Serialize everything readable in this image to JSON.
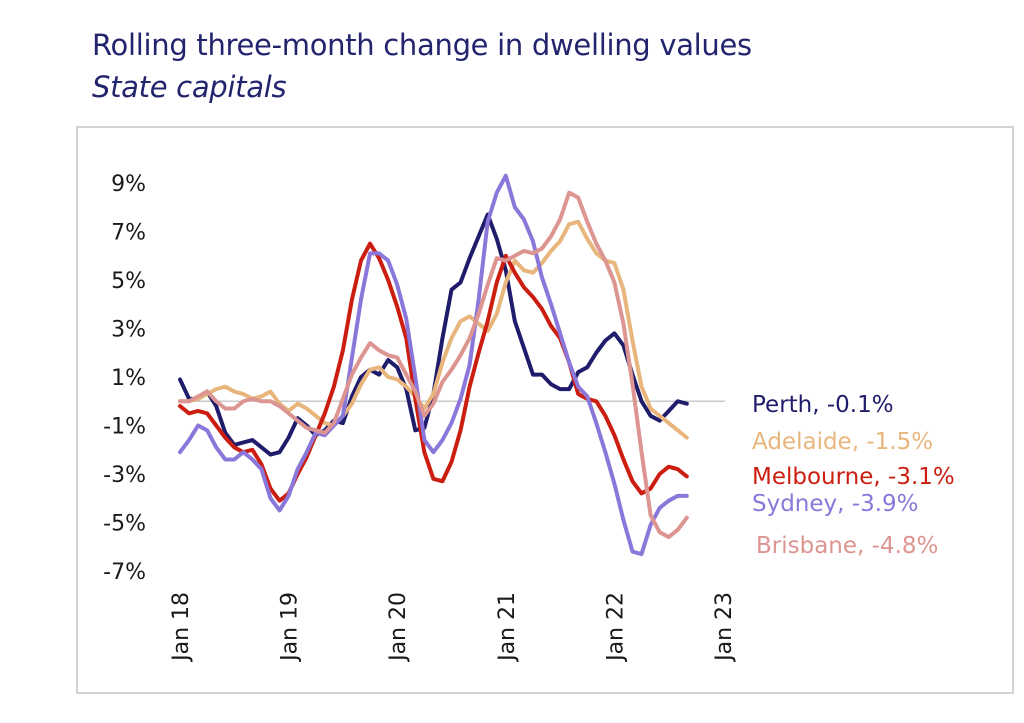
{
  "title": "Rolling three-month change in dwelling values",
  "subtitle": "State capitals",
  "chart_data": {
    "type": "line",
    "title": "Rolling three-month change in dwelling values",
    "subtitle": "State capitals",
    "xlabel": "",
    "ylabel": "",
    "ylim": [
      -7,
      9
    ],
    "y_ticks": [
      "9%",
      "7%",
      "5%",
      "3%",
      "1%",
      "-1%",
      "-3%",
      "-5%",
      "-7%"
    ],
    "y_tick_values": [
      9,
      7,
      5,
      3,
      1,
      -1,
      -3,
      -5,
      -7
    ],
    "x_ticks": [
      "Jan 18",
      "Jan 19",
      "Jan 20",
      "Jan 21",
      "Jan 22",
      "Jan 23"
    ],
    "x_tick_months": [
      0,
      12,
      24,
      36,
      48,
      60
    ],
    "grid": false,
    "zero_line": true,
    "legend": "end-of-line labels",
    "series": [
      {
        "name": "Perth",
        "end_label": "Perth, -0.1%",
        "color": "#1f1d6b",
        "values": [
          0.9,
          0.1,
          0.1,
          0.4,
          -0.2,
          -1.3,
          -1.8,
          -1.7,
          -1.6,
          -1.9,
          -2.2,
          -2.1,
          -1.5,
          -0.7,
          -1.0,
          -1.4,
          -1.2,
          -0.8,
          -0.9,
          0.2,
          1.0,
          1.3,
          1.1,
          1.7,
          1.4,
          0.5,
          -1.2,
          -1.1,
          0.3,
          2.6,
          4.6,
          4.9,
          5.9,
          6.8,
          7.7,
          6.7,
          5.4,
          3.3,
          2.2,
          1.1,
          1.1,
          0.7,
          0.5,
          0.5,
          1.2,
          1.4,
          2.0,
          2.5,
          2.8,
          2.3,
          1.1,
          0.0,
          -0.6,
          -0.8,
          -0.4,
          0.0,
          -0.1
        ]
      },
      {
        "name": "Adelaide",
        "end_label": "Adelaide, -1.5%",
        "color": "#e8b67d",
        "values": [
          0.0,
          0.0,
          0.1,
          0.3,
          0.5,
          0.6,
          0.4,
          0.3,
          0.1,
          0.2,
          0.4,
          -0.1,
          -0.4,
          -0.1,
          -0.3,
          -0.6,
          -0.9,
          -1.0,
          -0.6,
          -0.1,
          0.7,
          1.3,
          1.4,
          1.0,
          0.9,
          0.6,
          0.2,
          -0.3,
          0.3,
          1.6,
          2.6,
          3.3,
          3.5,
          3.2,
          2.9,
          3.6,
          4.9,
          5.8,
          5.4,
          5.3,
          5.7,
          6.2,
          6.6,
          7.3,
          7.4,
          6.7,
          6.1,
          5.8,
          5.7,
          4.6,
          2.5,
          0.6,
          -0.3,
          -0.6,
          -0.9,
          -1.2,
          -1.5
        ]
      },
      {
        "name": "Melbourne",
        "end_label": "Melbourne, -3.1%",
        "color": "#cc1e10",
        "values": [
          -0.2,
          -0.5,
          -0.4,
          -0.5,
          -1.0,
          -1.5,
          -1.9,
          -2.1,
          -2.0,
          -2.6,
          -3.6,
          -4.1,
          -3.8,
          -3.0,
          -2.3,
          -1.4,
          -0.5,
          0.6,
          2.1,
          4.2,
          5.8,
          6.5,
          5.9,
          5.0,
          3.9,
          2.6,
          0.1,
          -2.1,
          -3.2,
          -3.3,
          -2.5,
          -1.2,
          0.6,
          2.0,
          3.3,
          4.9,
          6.0,
          5.3,
          4.7,
          4.3,
          3.8,
          3.1,
          2.6,
          1.6,
          0.3,
          0.1,
          0.0,
          -0.6,
          -1.4,
          -2.4,
          -3.3,
          -3.8,
          -3.6,
          -3.0,
          -2.7,
          -2.8,
          -3.1
        ]
      },
      {
        "name": "Sydney",
        "end_label": "Sydney, -3.9%",
        "color": "#8a77d9",
        "values": [
          -2.1,
          -1.6,
          -1.0,
          -1.2,
          -1.9,
          -2.4,
          -2.4,
          -2.1,
          -2.4,
          -2.8,
          -4.0,
          -4.5,
          -3.9,
          -2.8,
          -2.1,
          -1.3,
          -1.4,
          -1.0,
          -0.6,
          1.8,
          4.2,
          6.1,
          6.1,
          5.8,
          4.8,
          3.4,
          1.0,
          -1.6,
          -2.1,
          -1.6,
          -0.9,
          0.1,
          1.5,
          4.2,
          7.4,
          8.6,
          9.3,
          8.0,
          7.5,
          6.6,
          5.1,
          4.0,
          2.8,
          1.6,
          0.6,
          0.2,
          -0.9,
          -2.1,
          -3.4,
          -4.9,
          -6.2,
          -6.3,
          -5.1,
          -4.4,
          -4.1,
          -3.9,
          -3.9
        ]
      },
      {
        "name": "Brisbane",
        "end_label": "Brisbane, -4.8%",
        "color": "#dc9591",
        "values": [
          0.0,
          0.0,
          0.2,
          0.4,
          0.0,
          -0.3,
          -0.3,
          0.0,
          0.1,
          0.0,
          0.0,
          -0.2,
          -0.5,
          -0.8,
          -1.1,
          -1.2,
          -1.3,
          -0.9,
          0.1,
          1.1,
          1.8,
          2.4,
          2.1,
          1.9,
          1.8,
          1.1,
          0.4,
          -0.6,
          -0.1,
          0.8,
          1.3,
          1.9,
          2.6,
          3.6,
          4.8,
          5.9,
          5.8,
          6.0,
          6.2,
          6.1,
          6.3,
          6.8,
          7.5,
          8.6,
          8.4,
          7.4,
          6.5,
          5.8,
          4.9,
          3.2,
          0.7,
          -2.1,
          -4.7,
          -5.4,
          -5.6,
          -5.3,
          -4.8
        ]
      }
    ]
  }
}
